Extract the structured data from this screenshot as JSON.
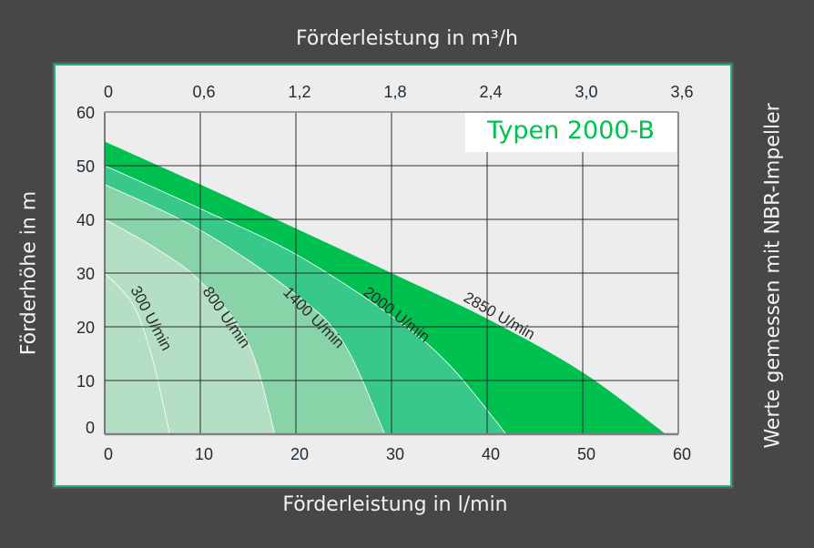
{
  "chart_data": {
    "type": "area",
    "title": "Typen 2000-B",
    "xlabel": "Förderleistung in l/min",
    "x2label": "Förderleistung in m³/h",
    "ylabel": "Förderhöhe in m",
    "note": "Werte gemessen mit NBR-Impeller",
    "xlim": [
      0,
      60
    ],
    "ylim": [
      0,
      60
    ],
    "x_ticks": [
      "0",
      "10",
      "20",
      "30",
      "40",
      "50",
      "60"
    ],
    "x2_ticks": [
      "0",
      "0,6",
      "1,2",
      "1,8",
      "2,4",
      "3,0",
      "3,6"
    ],
    "y_ticks": [
      "0",
      "10",
      "20",
      "30",
      "40",
      "50",
      "60"
    ],
    "grid": true,
    "legend_position": "top-right",
    "series": [
      {
        "name": "2850 U/min",
        "color": "#00C050",
        "points": [
          [
            0,
            54.5
          ],
          [
            10,
            46.5
          ],
          [
            20,
            38.3
          ],
          [
            30,
            30
          ],
          [
            40,
            21.5
          ],
          [
            50,
            11.5
          ],
          [
            58.7,
            0
          ]
        ]
      },
      {
        "name": "2000 U/min",
        "color": "#38C98A",
        "points": [
          [
            0,
            50
          ],
          [
            10,
            42
          ],
          [
            20,
            33.5
          ],
          [
            30,
            22
          ],
          [
            36,
            13
          ],
          [
            42,
            0
          ]
        ]
      },
      {
        "name": "1400 U/min",
        "color": "#88D3A8",
        "points": [
          [
            0,
            46.5
          ],
          [
            10,
            38
          ],
          [
            20,
            26
          ],
          [
            25,
            17
          ],
          [
            29.3,
            0
          ]
        ]
      },
      {
        "name": "800 U/min",
        "color": "#B5DFC5",
        "points": [
          [
            0,
            40
          ],
          [
            5,
            35
          ],
          [
            10,
            28.5
          ],
          [
            15,
            17
          ],
          [
            17.8,
            0
          ]
        ]
      },
      {
        "name": "300 U/min",
        "color": "#B5DFC5",
        "points": [
          [
            0,
            30
          ],
          [
            3,
            24
          ],
          [
            5,
            14
          ],
          [
            6.8,
            0
          ]
        ]
      }
    ]
  },
  "labels": {
    "top": "Förderleistung in m³/h",
    "bottom": "Förderleistung in l/min",
    "left": "Förderhöhe in m",
    "right": "Werte gemessen mit NBR-Impeller",
    "legend": "Typen 2000-B"
  },
  "colors": {
    "background": "#474747",
    "plot_background": "#EDEDED",
    "frame_accent": "#22B573"
  }
}
